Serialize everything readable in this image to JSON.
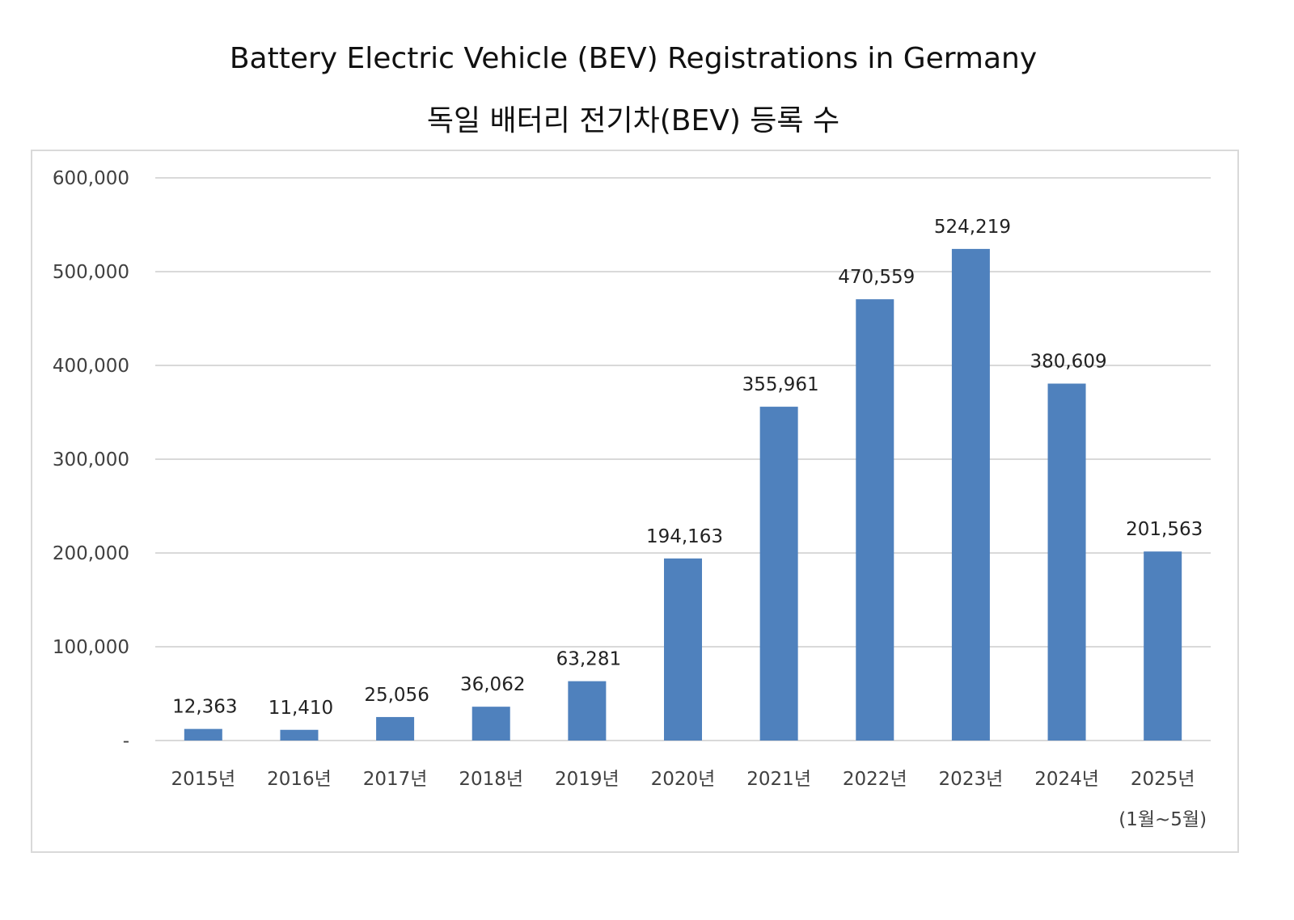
{
  "chart_data": {
    "type": "bar",
    "title": "Battery Electric Vehicle (BEV) Registrations in Germany",
    "subtitle": "독일 배터리 전기차(BEV) 등록 수",
    "categories": [
      "2015년",
      "2016년",
      "2017년",
      "2018년",
      "2019년",
      "2020년",
      "2021년",
      "2022년",
      "2023년",
      "2024년",
      "2025년"
    ],
    "category_sublabels": [
      "",
      "",
      "",
      "",
      "",
      "",
      "",
      "",
      "",
      "",
      "(1월~5월)"
    ],
    "values": [
      12363,
      11410,
      25056,
      36062,
      63281,
      194163,
      355961,
      470559,
      524219,
      380609,
      201563
    ],
    "data_labels": [
      "12,363",
      "11,410",
      "25,056",
      "36,062",
      "63,281",
      "194,163",
      "355,961",
      "470,559",
      "524,219",
      "380,609",
      "201,563"
    ],
    "yticks": [
      0,
      100000,
      200000,
      300000,
      400000,
      500000,
      600000
    ],
    "ytick_labels": [
      "-",
      "100,000",
      "200,000",
      "300,000",
      "400,000",
      "500,000",
      "600,000"
    ],
    "ylim": [
      0,
      600000
    ],
    "xlabel": "",
    "ylabel": "",
    "grid": true,
    "legend": "none",
    "colors": {
      "bar": "#4f81bd",
      "grid": "#d9d9d9",
      "text": "#404040"
    }
  }
}
